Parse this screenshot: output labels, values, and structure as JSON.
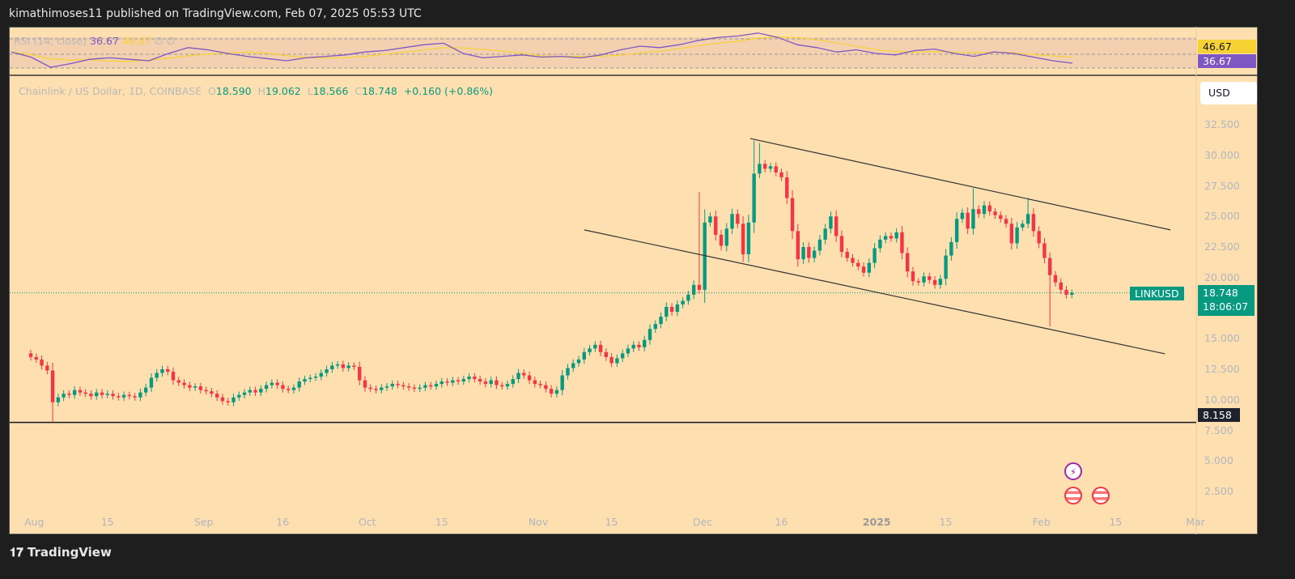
{
  "header": {
    "publish_text": "kimathimoses11 published on TradingView.com, Feb 07, 2025 05:53 UTC"
  },
  "rsi": {
    "label": "RSI (14, close)",
    "value": "36.67",
    "ma_value": "46.67",
    "extra1": "∅",
    "extra2": "∅",
    "tag_ma": "46.67",
    "tag_rsi": "36.67",
    "color_rsi": "#7e57c2",
    "color_ma": "#f7d234",
    "values": [
      52,
      45,
      31,
      36,
      42,
      44,
      42,
      40,
      50,
      58,
      55,
      50,
      46,
      43,
      40,
      44,
      46,
      48,
      52,
      54,
      58,
      62,
      64,
      50,
      44,
      46,
      48,
      45,
      46,
      44,
      48,
      55,
      60,
      58,
      62,
      68,
      72,
      74,
      78,
      72,
      62,
      58,
      52,
      55,
      50,
      48,
      54,
      56,
      50,
      46,
      52,
      50,
      45,
      40,
      36.7
    ]
  },
  "legend": {
    "symbol": "Chainlink / US Dollar, 1D, COINBASE",
    "o_label": "O",
    "o": "18.590",
    "h_label": "H",
    "h": "19.062",
    "l_label": "L",
    "l": "18.566",
    "c_label": "C",
    "c": "18.748",
    "change": "+0.160 (+0.86%)"
  },
  "currency": "USD",
  "price_tag": {
    "symbol": "LINKUSD",
    "price": "18.748",
    "countdown": "18:06:07"
  },
  "support_tag": "8.158",
  "footer": {
    "logo": "TradingView"
  },
  "events": {
    "lightning": "lightning-icon",
    "flag1": "us-flag-icon",
    "flag2": "us-flag-icon"
  },
  "chart_data": {
    "type": "candlestick",
    "title": "Chainlink / US Dollar, 1D, COINBASE",
    "ylim": [
      0,
      35
    ],
    "y_ticks": [
      "32.500",
      "30.000",
      "27.500",
      "25.000",
      "22.500",
      "20.000",
      "15.000",
      "12.500",
      "10.000",
      "7.500",
      "5.000",
      "2.500"
    ],
    "y_tick_values": [
      32.5,
      30,
      27.5,
      25,
      22.5,
      20,
      15,
      12.5,
      10,
      7.5,
      5,
      2.5
    ],
    "x_ticks": [
      {
        "label": "Aug",
        "day": 0
      },
      {
        "label": "15",
        "day": 14
      },
      {
        "label": "Sep",
        "day": 31
      },
      {
        "label": "16",
        "day": 46
      },
      {
        "label": "Oct",
        "day": 61
      },
      {
        "label": "15",
        "day": 75
      },
      {
        "label": "Nov",
        "day": 92
      },
      {
        "label": "15",
        "day": 106
      },
      {
        "label": "Dec",
        "day": 122
      },
      {
        "label": "16",
        "day": 137
      },
      {
        "label": "2025",
        "day": 153
      },
      {
        "label": "15",
        "day": 167
      },
      {
        "label": "Feb",
        "day": 184
      },
      {
        "label": "15",
        "day": 198
      },
      {
        "label": "Mar",
        "day": 212
      }
    ],
    "start_date": "2024-08-01",
    "first_open": 13.8,
    "closes": [
      13.5,
      13.3,
      12.8,
      12.4,
      9.8,
      10.2,
      10.5,
      10.4,
      10.8,
      10.6,
      10.5,
      10.3,
      10.6,
      10.4,
      10.5,
      10.3,
      10.2,
      10.4,
      10.3,
      10.2,
      10.6,
      11.0,
      11.8,
      12.2,
      12.5,
      12.3,
      11.6,
      11.4,
      11.2,
      11.0,
      11.1,
      10.8,
      10.7,
      10.5,
      10.2,
      9.9,
      9.8,
      10.2,
      10.4,
      10.6,
      10.8,
      10.6,
      10.9,
      11.2,
      11.4,
      11.2,
      10.9,
      10.8,
      11.0,
      11.5,
      11.7,
      11.8,
      11.9,
      12.2,
      12.5,
      12.8,
      12.9,
      12.6,
      12.8,
      12.7,
      11.6,
      11.0,
      10.9,
      10.8,
      11.0,
      11.1,
      11.3,
      11.2,
      11.1,
      11.0,
      10.9,
      11.0,
      11.2,
      11.1,
      11.3,
      11.5,
      11.4,
      11.6,
      11.5,
      11.7,
      11.9,
      11.7,
      11.5,
      11.3,
      11.6,
      11.2,
      11.1,
      11.3,
      11.7,
      12.2,
      12.0,
      11.6,
      11.3,
      11.2,
      10.9,
      10.5,
      10.8,
      12.0,
      12.6,
      13.0,
      13.3,
      13.9,
      14.2,
      14.5,
      13.9,
      13.5,
      13.0,
      13.4,
      13.8,
      14.2,
      14.5,
      14.3,
      14.9,
      15.8,
      16.2,
      16.8,
      17.6,
      17.2,
      17.8,
      18.1,
      18.6,
      19.4,
      19.0,
      24.5,
      25.0,
      23.5,
      22.6,
      24.0,
      25.2,
      24.4,
      21.9,
      24.5,
      28.5,
      29.3,
      28.9,
      29.1,
      28.6,
      28.2,
      26.5,
      23.8,
      21.5,
      22.5,
      21.6,
      22.2,
      23.1,
      24.0,
      25.0,
      23.4,
      22.1,
      21.6,
      21.2,
      20.9,
      20.4,
      21.2,
      22.4,
      23.1,
      23.4,
      23.2,
      23.7,
      22.0,
      20.5,
      19.7,
      19.6,
      20.1,
      19.8,
      19.4,
      19.9,
      21.8,
      22.9,
      24.8,
      25.3,
      24.0,
      25.6,
      25.2,
      25.9,
      25.4,
      25.1,
      24.8,
      24.4,
      22.8,
      24.1,
      24.4,
      25.2,
      23.8,
      22.8,
      21.6,
      20.2,
      19.6,
      19.0,
      18.59,
      18.748
    ],
    "wick_overrides": {
      "4": {
        "low": 8.16
      },
      "122": {
        "high": 27.0
      },
      "132": {
        "high": 31.2
      },
      "133": {
        "high": 31.0
      },
      "186": {
        "low": 16.0
      },
      "172": {
        "high": 27.3
      },
      "182": {
        "high": 26.5
      }
    },
    "current_price": 18.748,
    "support_level": 8.158,
    "trendlines": [
      {
        "name": "upper-channel",
        "from": {
          "day": 131.3,
          "price": 31.37
        },
        "to": {
          "day": 208,
          "price": 23.9
        }
      },
      {
        "name": "lower-channel",
        "from": {
          "day": 101,
          "price": 23.9
        },
        "to": {
          "day": 207,
          "price": 13.76
        }
      }
    ],
    "colors": {
      "up": "#089981",
      "down": "#f23645"
    }
  }
}
